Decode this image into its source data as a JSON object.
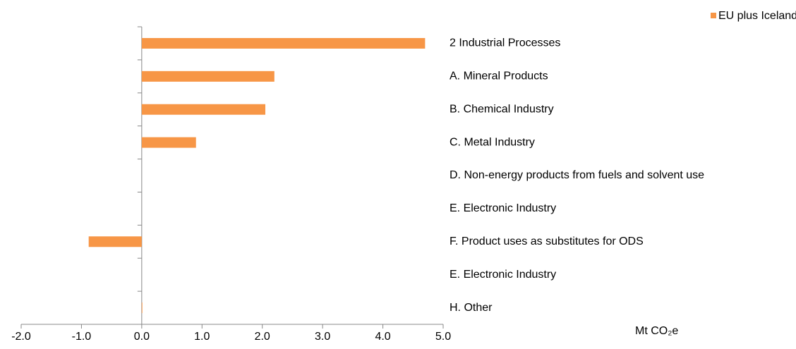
{
  "chart_data": {
    "type": "hbar",
    "categories": [
      "2 Industrial Processes",
      "A.  Mineral Products",
      "B.  Chemical Industry",
      "C.  Metal Industry",
      "D.  Non-energy products from fuels and solvent use",
      "E.  Electronic Industry",
      "F.  Product uses as substitutes for ODS",
      "E.  Electronic Industry",
      "H. Other"
    ],
    "series": [
      {
        "name": "EU plus Iceland",
        "color": "#f79646",
        "values": [
          4.7,
          2.2,
          2.05,
          0.9,
          0,
          0,
          -0.88,
          0,
          0.01
        ]
      }
    ],
    "xlim": [
      -2,
      5
    ],
    "xticks": [
      {
        "value": -2,
        "label": "-2.0"
      },
      {
        "value": -1,
        "label": "-1.0"
      },
      {
        "value": 0,
        "label": "0.0"
      },
      {
        "value": 1,
        "label": "1.0"
      },
      {
        "value": 2,
        "label": "2.0"
      },
      {
        "value": 3,
        "label": "3.0"
      },
      {
        "value": 4,
        "label": "4.0"
      },
      {
        "value": 5,
        "label": "5.0"
      }
    ],
    "x_label": "Mt CO₂e",
    "legend": "top-right"
  }
}
